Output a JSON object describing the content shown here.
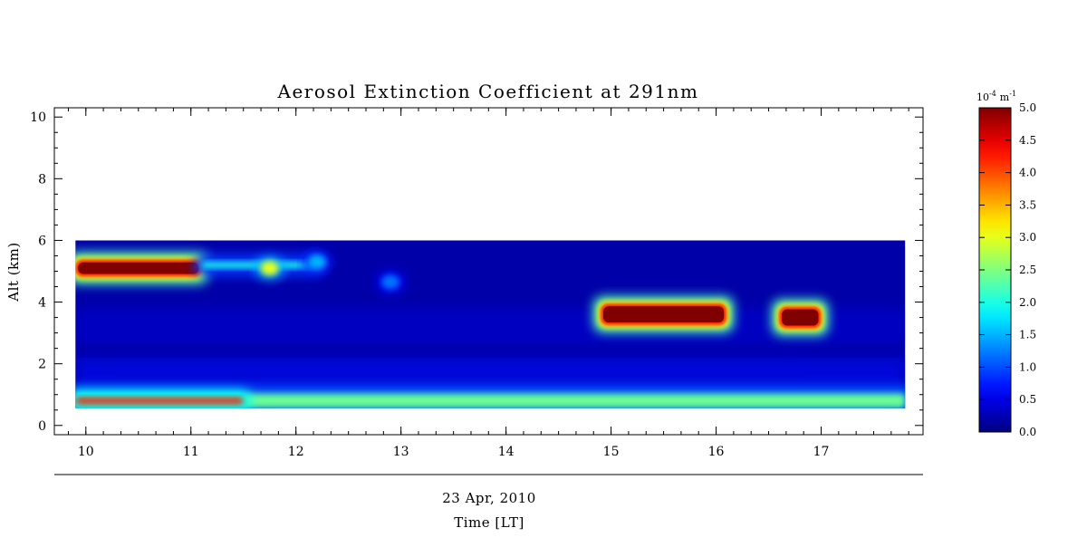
{
  "chart_data": {
    "type": "heatmap",
    "title": "Aerosol Extinction Coefficient at 291nm",
    "xlabel_date": "23 Apr, 2010",
    "xlabel": "Time [LT]",
    "ylabel": "Alt (km)",
    "xlim": [
      9.7,
      17.97
    ],
    "ylim": [
      -0.3,
      10.3
    ],
    "x_ticks": [
      10,
      11,
      12,
      13,
      14,
      15,
      16,
      17
    ],
    "y_ticks": [
      0,
      2,
      4,
      6,
      8,
      10
    ],
    "data_extent": {
      "x": [
        9.9,
        17.8
      ],
      "y": [
        0.55,
        6.0
      ]
    },
    "background_value": 0.2,
    "features": [
      {
        "label": "surface layer",
        "x": [
          9.9,
          17.8
        ],
        "alt": 0.8,
        "value": 2.4
      },
      {
        "label": "surface layer core",
        "x": [
          9.9,
          11.5
        ],
        "alt": 0.8,
        "value": 4.2
      },
      {
        "label": "elevated layer",
        "x": [
          9.9,
          11.1
        ],
        "alt": 5.1,
        "value": 5.0
      },
      {
        "label": "elevated layer tail",
        "x": [
          11.1,
          12.2
        ],
        "alt": 5.2,
        "value": 2.0
      },
      {
        "label": "patch",
        "x": 11.75,
        "alt": 5.1,
        "value": 3.0
      },
      {
        "label": "patch",
        "x": 12.2,
        "alt": 5.3,
        "value": 1.5
      },
      {
        "label": "patch",
        "x": 12.9,
        "alt": 4.65,
        "value": 1.2
      },
      {
        "label": "plume",
        "x": [
          14.9,
          16.1
        ],
        "alt": 3.6,
        "value": 5.0
      },
      {
        "label": "plume",
        "x": [
          16.6,
          17.0
        ],
        "alt": 3.5,
        "value": 5.0
      }
    ],
    "colorbar": {
      "unit_base": "10",
      "unit_exp": "-4",
      "unit_suffix": "m",
      "unit_suffix_exp": "-1",
      "range": [
        0.0,
        5.0
      ],
      "ticks": [
        "0.0",
        "0.5",
        "1.0",
        "1.5",
        "2.0",
        "2.5",
        "3.0",
        "3.5",
        "4.0",
        "4.5",
        "5.0"
      ],
      "colormap": "jet"
    },
    "colors": {
      "low": "#00007f",
      "mid": "#00ffff",
      "high": "#7f0000"
    }
  }
}
